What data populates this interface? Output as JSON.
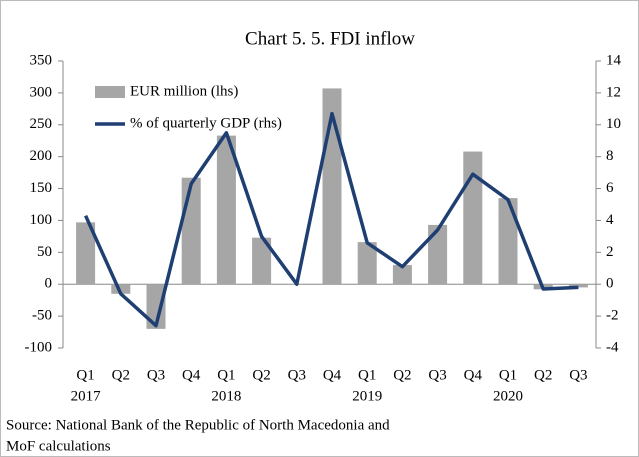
{
  "chart_data": {
    "type": "bar_line",
    "title": "Chart 5. 5. FDI inflow",
    "categories": [
      "Q1",
      "Q2",
      "Q3",
      "Q4",
      "Q1",
      "Q2",
      "Q3",
      "Q4",
      "Q1",
      "Q2",
      "Q3",
      "Q4",
      "Q1",
      "Q2",
      "Q3"
    ],
    "category_groups": [
      "2017",
      "2018",
      "2019",
      "2020"
    ],
    "series": [
      {
        "name": "EUR million (lhs)",
        "type": "bar",
        "color": "#a6a6a6",
        "axis": "y",
        "values": [
          97,
          -15,
          -70,
          167,
          233,
          73,
          0,
          307,
          66,
          30,
          93,
          208,
          135,
          -8,
          -5
        ]
      },
      {
        "name": "% of quarterly GDP (rhs)",
        "type": "line",
        "color": "#1f3f73",
        "axis": "y2",
        "values": [
          4.3,
          -0.6,
          -2.6,
          6.3,
          9.5,
          3.0,
          0,
          10.7,
          2.6,
          1.1,
          3.4,
          6.9,
          5.3,
          -0.3,
          -0.2
        ]
      }
    ],
    "ylim": [
      -100,
      350
    ],
    "yticks": [
      -100,
      -50,
      0,
      50,
      100,
      150,
      200,
      250,
      300,
      350
    ],
    "y2lim": [
      -4,
      14
    ],
    "y2ticks": [
      -4,
      -2,
      0,
      2,
      4,
      6,
      8,
      10,
      12,
      14
    ],
    "source": [
      "Source: National Bank of the Republic of North Macedonia and",
      "MoF calculations"
    ]
  }
}
